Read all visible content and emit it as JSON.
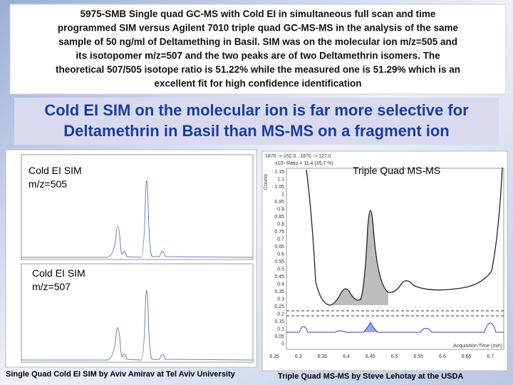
{
  "summary": {
    "lines": [
      "5975-SMB Single quad GC-MS with Cold EI in simultaneous full scan and time",
      "programmed  SIM versus Agilent 7010 triple quad GC-MS-MS in the analysis of the same",
      "sample of 50 ng/ml of Deltamething in Basil. SIM was on the molecular ion m/z=505 and",
      "its isotopomer m/z=507 and the two peaks are of two Deltamethrin isomers. The",
      "theoretical 507/505 isotope ratio is 51.22%  while the measured one is 51.29% which is an",
      "excellent fit for high confidence identification"
    ]
  },
  "headline": {
    "lines": [
      "Cold EI SIM on the molecular ion is far more selective for",
      "Deltamethrin in Basil than MS-MS on a fragment ion"
    ]
  },
  "left_panel": {
    "top_label": [
      "Cold EI SIM",
      "m/z=505"
    ],
    "bottom_label": [
      "Cold EI SIM",
      "m/z=507"
    ],
    "caption": "Single Quad Cold EI SIM by Aviv Amirav at Tel Aviv University"
  },
  "right_panel": {
    "label": "Triple Quad MS-MS",
    "transitions": "1870 -> 152.0 , 1870 -> 127.0",
    "ratio": "Ratio = 11.4 (35.7 %)",
    "scale": "x10⁵",
    "y_title": "Counts",
    "x_title": "Acquisition Time (min)",
    "y_labels": [
      "1.15",
      "1.1",
      "1.05",
      "1",
      "0.95",
      "0.9",
      "0.85",
      "0.8",
      "0.75",
      "0.7",
      "0.65",
      "0.6",
      "0.55",
      "0.5",
      "0.45",
      "0.4",
      "0.35",
      "0.3",
      "0.25",
      "0.2",
      "0.15",
      "0.1",
      "0.05",
      "0"
    ],
    "x_labels": [
      "6.25",
      "6.3",
      "6.35",
      "6.4",
      "6.45",
      "6.5",
      "6.55",
      "6.6",
      "6.65",
      "6.7"
    ],
    "caption": "Triple Quad MS-MS by Steve Lehotay at the USDA"
  }
}
